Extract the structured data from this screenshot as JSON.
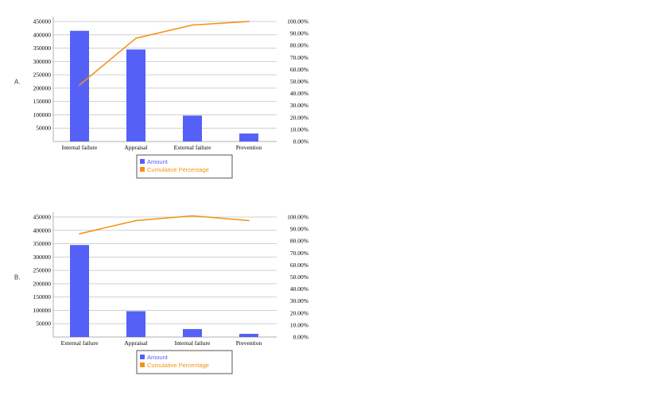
{
  "chart_data": [
    {
      "label": "A.",
      "type": "bar",
      "categories": [
        "Internal failure",
        "Appraisal",
        "External failure",
        "Prevention"
      ],
      "series": [
        {
          "name": "Amount",
          "type": "bar",
          "values": [
            415000,
            345000,
            97000,
            30000
          ]
        },
        {
          "name": "Cumulative Percentage",
          "type": "line",
          "axis": "right",
          "values": [
            47,
            86,
            97,
            100
          ]
        }
      ],
      "y_ticks": [
        "450000",
        "400000",
        "350000",
        "300000",
        "250000",
        "200000",
        "150000",
        "100000",
        "50000"
      ],
      "y2_ticks": [
        "100.00%",
        "90.00%",
        "80.00%",
        "70.00%",
        "60.00%",
        "50.00%",
        "40.00%",
        "30.00%",
        "20.00%",
        "10.00%",
        "0.00%"
      ],
      "ylim": [
        0,
        450000
      ],
      "y2lim": [
        0,
        100
      ],
      "grid": true,
      "legend_placement": "bottom",
      "colors": {
        "bar": "#5560f7",
        "line": "#f7900f"
      }
    },
    {
      "label": "B.",
      "type": "bar",
      "categories": [
        "External failure",
        "Appraisal",
        "Internal failure",
        "Prevention"
      ],
      "series": [
        {
          "name": "Amount",
          "type": "bar",
          "values": [
            345000,
            97000,
            30000,
            12000
          ]
        },
        {
          "name": "Cumulative Percentage",
          "type": "line",
          "axis": "right",
          "values": [
            86,
            97,
            101,
            97
          ]
        }
      ],
      "y_ticks": [
        "450000",
        "400000",
        "350000",
        "300000",
        "250000",
        "200000",
        "150000",
        "100000",
        "50000"
      ],
      "y2_ticks": [
        "100.00%",
        "90.00%",
        "80.00%",
        "70.00%",
        "60.00%",
        "50.00%",
        "40.00%",
        "30.00%",
        "20.00%",
        "10.00%",
        "0.00%"
      ],
      "ylim": [
        0,
        450000
      ],
      "y2lim": [
        0,
        100
      ],
      "grid": true,
      "legend_placement": "bottom",
      "colors": {
        "bar": "#5560f7",
        "line": "#f7900f"
      }
    }
  ]
}
